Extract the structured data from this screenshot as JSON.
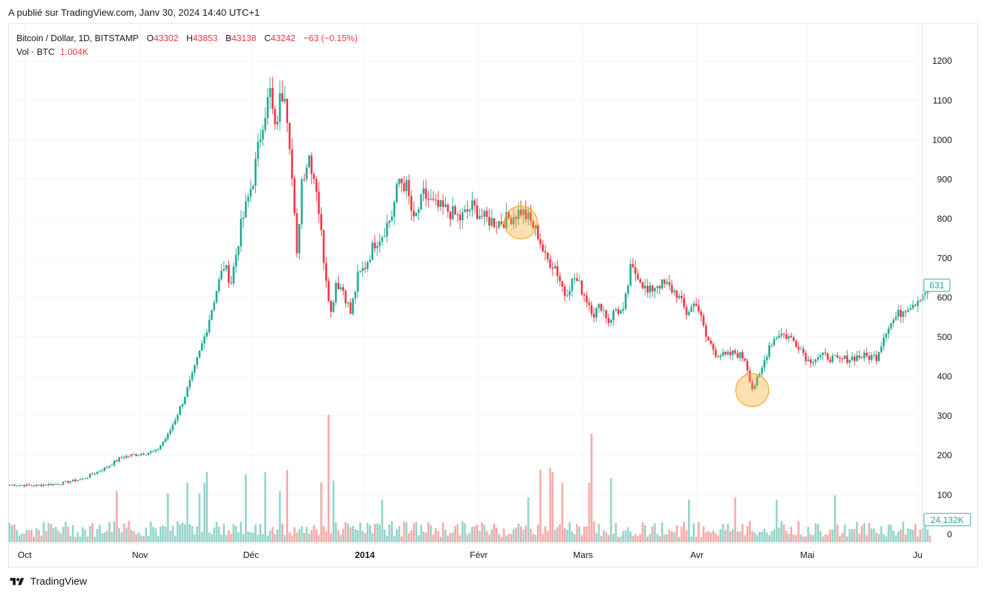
{
  "header": {
    "published": "A publié sur TradingView.com, Janv 30, 2024 14:40 UTC+1"
  },
  "legend": {
    "symbol": "Bitcoin / Dollar, 1D, BITSTAMP",
    "o_label": "O",
    "o_value": "43302",
    "h_label": "H",
    "h_value": "43853",
    "l_label": "B",
    "l_value": "43138",
    "c_label": "C",
    "c_value": "43242",
    "change": "−63 (−0.15%)",
    "vol_label": "Vol · BTC",
    "vol_value": "1.004K"
  },
  "footer": {
    "brand": "TradingView"
  },
  "colors": {
    "up": "#22ab94",
    "down": "#f23645",
    "up_vol": "#94d4c9",
    "down_vol": "#f7a9a7",
    "marker": "#f5a623"
  },
  "chart_data": {
    "type": "candlestick",
    "title": "Bitcoin / Dollar, 1D, BITSTAMP",
    "y_ticks": [
      0,
      100,
      200,
      300,
      400,
      500,
      600,
      700,
      800,
      900,
      1000,
      1100,
      1200
    ],
    "ylim": [
      0,
      1250
    ],
    "x_ticks": [
      "Oct",
      "Nov",
      "Déc",
      "2014",
      "Févr",
      "Mars",
      "Avr",
      "Mai",
      "Ju"
    ],
    "last_price_label": "631",
    "volume_label": "24.132K",
    "grid": true,
    "price_waypoints": [
      [
        0,
        125
      ],
      [
        10,
        123
      ],
      [
        20,
        128
      ],
      [
        30,
        140
      ],
      [
        40,
        170
      ],
      [
        46,
        195
      ],
      [
        50,
        200
      ],
      [
        60,
        210
      ],
      [
        65,
        250
      ],
      [
        70,
        320
      ],
      [
        75,
        400
      ],
      [
        80,
        500
      ],
      [
        85,
        620
      ],
      [
        88,
        680
      ],
      [
        91,
        640
      ],
      [
        95,
        780
      ],
      [
        100,
        900
      ],
      [
        104,
        1050
      ],
      [
        107,
        1120
      ],
      [
        109,
        1020
      ],
      [
        111,
        1100
      ],
      [
        113,
        1130
      ],
      [
        115,
        1000
      ],
      [
        118,
        700
      ],
      [
        120,
        900
      ],
      [
        123,
        960
      ],
      [
        126,
        880
      ],
      [
        129,
        700
      ],
      [
        132,
        560
      ],
      [
        134,
        640
      ],
      [
        137,
        620
      ],
      [
        140,
        560
      ],
      [
        143,
        650
      ],
      [
        146,
        680
      ],
      [
        150,
        740
      ],
      [
        153,
        760
      ],
      [
        157,
        810
      ],
      [
        160,
        900
      ],
      [
        163,
        880
      ],
      [
        166,
        790
      ],
      [
        170,
        860
      ],
      [
        175,
        830
      ],
      [
        180,
        820
      ],
      [
        185,
        800
      ],
      [
        190,
        830
      ],
      [
        195,
        800
      ],
      [
        200,
        790
      ],
      [
        205,
        800
      ],
      [
        210,
        820
      ],
      [
        213,
        800
      ],
      [
        217,
        760
      ],
      [
        220,
        700
      ],
      [
        224,
        680
      ],
      [
        228,
        610
      ],
      [
        232,
        650
      ],
      [
        235,
        620
      ],
      [
        240,
        560
      ],
      [
        243,
        580
      ],
      [
        246,
        540
      ],
      [
        249,
        570
      ],
      [
        252,
        560
      ],
      [
        255,
        670
      ],
      [
        258,
        660
      ],
      [
        262,
        610
      ],
      [
        266,
        635
      ],
      [
        270,
        630
      ],
      [
        274,
        610
      ],
      [
        278,
        560
      ],
      [
        282,
        590
      ],
      [
        286,
        500
      ],
      [
        290,
        460
      ],
      [
        294,
        450
      ],
      [
        298,
        460
      ],
      [
        302,
        445
      ],
      [
        305,
        370
      ],
      [
        308,
        400
      ],
      [
        312,
        480
      ],
      [
        316,
        510
      ],
      [
        320,
        500
      ],
      [
        324,
        480
      ],
      [
        328,
        440
      ],
      [
        332,
        450
      ],
      [
        336,
        450
      ],
      [
        340,
        440
      ],
      [
        344,
        445
      ],
      [
        348,
        450
      ],
      [
        352,
        450
      ],
      [
        356,
        450
      ],
      [
        360,
        520
      ],
      [
        364,
        550
      ],
      [
        368,
        575
      ],
      [
        372,
        590
      ],
      [
        375,
        610
      ],
      [
        378,
        631
      ]
    ],
    "volume_spikes": [
      [
        44,
        120
      ],
      [
        65,
        115
      ],
      [
        73,
        140
      ],
      [
        78,
        115
      ],
      [
        80,
        140
      ],
      [
        81,
        165
      ],
      [
        97,
        160
      ],
      [
        105,
        165
      ],
      [
        111,
        120
      ],
      [
        114,
        170
      ],
      [
        128,
        140
      ],
      [
        131,
        300
      ],
      [
        133,
        145
      ],
      [
        153,
        100
      ],
      [
        213,
        105
      ],
      [
        218,
        170
      ],
      [
        222,
        175
      ],
      [
        223,
        165
      ],
      [
        227,
        140
      ],
      [
        238,
        140
      ],
      [
        239,
        255
      ],
      [
        247,
        150
      ],
      [
        279,
        100
      ],
      [
        298,
        105
      ],
      [
        315,
        100
      ],
      [
        339,
        110
      ]
    ],
    "markers": [
      {
        "day": 210,
        "price": 790
      },
      {
        "day": 305,
        "price": 365
      }
    ]
  }
}
